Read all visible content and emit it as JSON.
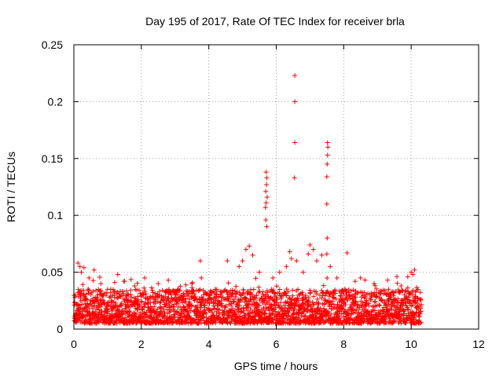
{
  "chart_data": {
    "type": "scatter",
    "title": "Day 195 of 2017, Rate Of TEC Index for receiver brla",
    "xlabel": "GPS time / hours",
    "ylabel": "ROTI / TECUs",
    "xlim": [
      0,
      12
    ],
    "ylim": [
      0,
      0.25
    ],
    "xticks": [
      "0",
      "2",
      "4",
      "6",
      "8",
      "10",
      "12"
    ],
    "yticks": [
      "0",
      "0.05",
      "0.1",
      "0.15",
      "0.2",
      "0.25"
    ],
    "grid": true,
    "marker": "+",
    "color": "#ff0000",
    "series": [
      {
        "x": [
          5.7,
          5.72,
          5.71,
          5.69,
          5.73,
          5.7,
          5.68,
          5.69,
          5.72,
          6.55,
          6.55,
          6.55,
          6.54,
          7.52,
          7.53,
          7.52,
          7.51,
          7.5,
          7.5,
          7.51,
          7.5,
          0.05,
          0.12,
          0.18,
          0.22,
          0.3,
          0.45,
          0.6,
          0.8,
          1.0,
          1.3,
          1.5,
          1.8,
          2.1,
          2.5,
          2.8,
          3.1,
          3.5,
          3.75,
          3.78,
          4.2,
          4.55,
          4.9,
          5.0,
          5.1,
          5.2,
          5.3,
          5.5,
          5.9,
          6.1,
          6.3,
          6.4,
          6.45,
          6.6,
          6.8,
          6.95,
          7.0,
          7.1,
          7.2,
          7.35,
          7.6,
          7.8,
          8.1,
          8.5,
          8.9,
          9.3,
          9.7,
          9.9,
          10.0,
          10.05,
          10.1,
          10.2
        ],
        "y": [
          0.138,
          0.133,
          0.127,
          0.121,
          0.116,
          0.111,
          0.107,
          0.096,
          0.09,
          0.223,
          0.2,
          0.164,
          0.133,
          0.164,
          0.16,
          0.153,
          0.145,
          0.134,
          0.11,
          0.08,
          0.066,
          0.03,
          0.058,
          0.055,
          0.05,
          0.054,
          0.045,
          0.052,
          0.04,
          0.035,
          0.048,
          0.042,
          0.038,
          0.045,
          0.04,
          0.043,
          0.035,
          0.04,
          0.06,
          0.045,
          0.035,
          0.06,
          0.055,
          0.06,
          0.07,
          0.073,
          0.065,
          0.05,
          0.045,
          0.05,
          0.055,
          0.068,
          0.062,
          0.06,
          0.05,
          0.066,
          0.074,
          0.07,
          0.06,
          0.065,
          0.055,
          0.045,
          0.067,
          0.045,
          0.04,
          0.043,
          0.038,
          0.046,
          0.05,
          0.048,
          0.052,
          0.035
        ]
      }
    ],
    "baseline_band": {
      "x_range": [
        0,
        10.3
      ],
      "y_min": 0.005,
      "y_typical_max": 0.035,
      "density": "dense"
    }
  }
}
